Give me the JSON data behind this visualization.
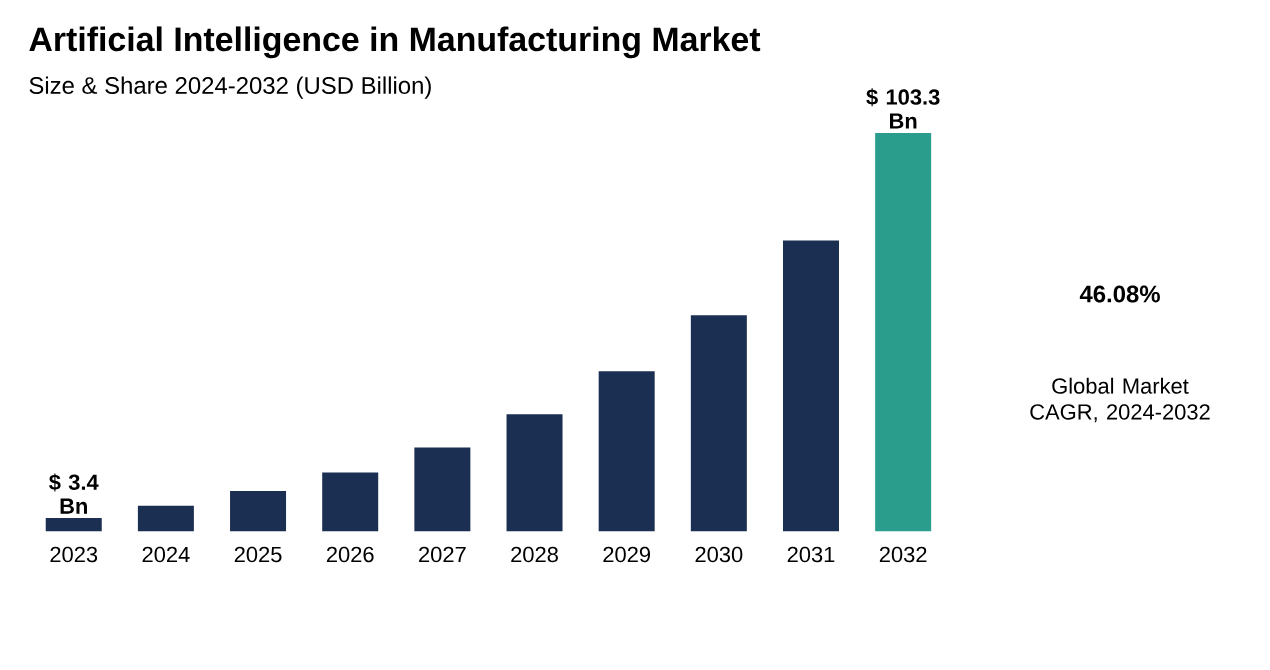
{
  "chart_data": {
    "type": "bar",
    "title": "Artificial Intelligence in Manufacturing Market",
    "subtitle": "Size & Share 2024-2032 (USD Billion)",
    "categories": [
      "2023",
      "2024",
      "2025",
      "2026",
      "2027",
      "2028",
      "2029",
      "2030",
      "2031",
      "2032"
    ],
    "values": [
      3.4,
      6.6,
      10.4,
      15.2,
      21.7,
      30.3,
      41.5,
      56.0,
      75.4,
      103.3
    ],
    "colors": [
      "#1b2f52",
      "#1b2f52",
      "#1b2f52",
      "#1b2f52",
      "#1b2f52",
      "#1b2f52",
      "#1b2f52",
      "#1b2f52",
      "#1b2f52",
      "#2a9d8c"
    ],
    "value_labels": [
      "$ 3.4 Bn",
      null,
      null,
      null,
      null,
      null,
      null,
      null,
      null,
      "$ 103.3 Bn"
    ],
    "annotations": [
      "46.08%",
      "Global Market CAGR, 2024-2032"
    ]
  }
}
